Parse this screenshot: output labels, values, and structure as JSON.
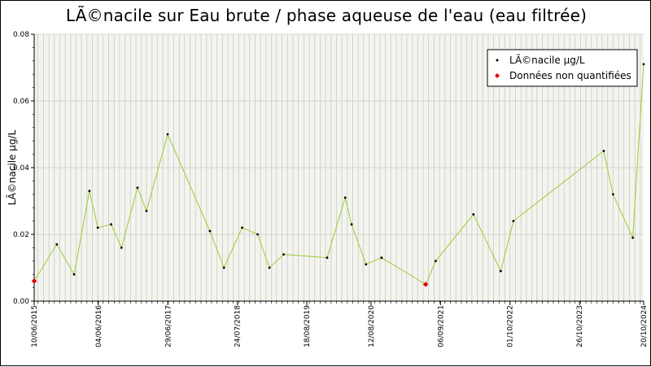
{
  "chart_data": {
    "type": "line",
    "title": "LÃ©nacile sur Eau brute / phase aqueuse de l'eau (eau filtrée)",
    "ylabel": "LÃ©nacile µg/L",
    "xlabel": "",
    "ylim": [
      0,
      0.08
    ],
    "yticks": [
      "0.00",
      "0.02",
      "0.04",
      "0.06",
      "0.08"
    ],
    "xlim": [
      "2015-06-10",
      "2024-10-20"
    ],
    "xticks": [
      "10/06/2015",
      "04/06/2016",
      "29/06/2017",
      "24/07/2018",
      "18/08/2019",
      "12/08/2020",
      "06/09/2021",
      "01/10/2022",
      "26/10/2023",
      "20/10/2024"
    ],
    "grid": true,
    "legend_position": "top-right",
    "colors": {
      "line": "#9acd32",
      "marker": "#000000",
      "non_quantified": "#dd0000",
      "grid": "#c8c8c8",
      "plot_bg": "#f4f4ef"
    },
    "legend": [
      {
        "label": "LÃ©nacile µg/L",
        "marker": "black-dot"
      },
      {
        "label": "Données non quantifiées",
        "marker": "red-diamond"
      }
    ],
    "series": [
      {
        "name": "LÃ©nacile µg/L",
        "points": [
          {
            "date": "2015-06-10",
            "value": 0.006,
            "nq": true
          },
          {
            "date": "2015-10-15",
            "value": 0.017
          },
          {
            "date": "2016-01-20",
            "value": 0.008
          },
          {
            "date": "2016-04-15",
            "value": 0.033
          },
          {
            "date": "2016-06-01",
            "value": 0.022
          },
          {
            "date": "2016-08-15",
            "value": 0.023
          },
          {
            "date": "2016-10-12",
            "value": 0.016
          },
          {
            "date": "2017-01-10",
            "value": 0.034
          },
          {
            "date": "2017-03-01",
            "value": 0.027
          },
          {
            "date": "2017-06-28",
            "value": 0.05
          },
          {
            "date": "2018-02-20",
            "value": 0.021
          },
          {
            "date": "2018-05-10",
            "value": 0.01
          },
          {
            "date": "2018-08-20",
            "value": 0.022
          },
          {
            "date": "2018-11-15",
            "value": 0.02
          },
          {
            "date": "2019-01-20",
            "value": 0.01
          },
          {
            "date": "2019-04-10",
            "value": 0.014
          },
          {
            "date": "2019-12-10",
            "value": 0.013
          },
          {
            "date": "2020-03-20",
            "value": 0.031
          },
          {
            "date": "2020-04-25",
            "value": 0.023
          },
          {
            "date": "2020-07-15",
            "value": 0.011
          },
          {
            "date": "2020-10-10",
            "value": 0.013
          },
          {
            "date": "2021-06-15",
            "value": 0.005,
            "nq": true
          },
          {
            "date": "2021-08-10",
            "value": 0.012
          },
          {
            "date": "2022-03-10",
            "value": 0.026
          },
          {
            "date": "2022-08-10",
            "value": 0.009
          },
          {
            "date": "2022-10-20",
            "value": 0.024
          },
          {
            "date": "2024-03-10",
            "value": 0.045
          },
          {
            "date": "2024-05-01",
            "value": 0.032
          },
          {
            "date": "2024-08-20",
            "value": 0.019
          },
          {
            "date": "2024-10-20",
            "value": 0.071
          }
        ]
      }
    ]
  }
}
